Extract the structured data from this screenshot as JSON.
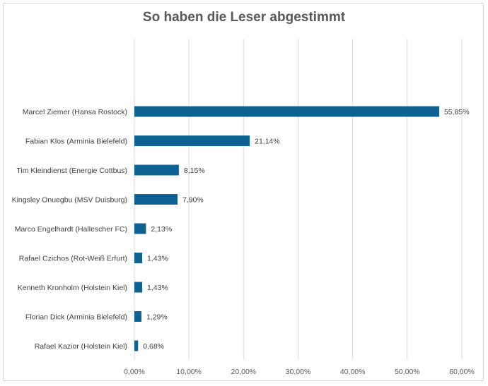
{
  "chart_data": {
    "type": "bar",
    "orientation": "horizontal",
    "title": "So haben die Leser abgestimmt",
    "xlabel": "",
    "ylabel": "",
    "categories": [
      "Marcel Ziemer (Hansa Rostock)",
      "Fabian Klos (Arminia Bielefeld)",
      "Tim Kleindienst (Energie Cottbus)",
      "Kingsley Onuegbu (MSV Duisburg)",
      "Marco Engelhardt (Hallescher FC)",
      "Rafael Czichos (Rot-Weiß Erfurt)",
      "Kenneth Kronholm (Holstein Kiel)",
      "Florian Dick (Arminia Bielefeld)",
      "Rafael Kazior (Holstein Kiel)"
    ],
    "values": [
      55.85,
      21.14,
      8.15,
      7.9,
      2.13,
      1.43,
      1.43,
      1.29,
      0.68
    ],
    "data_labels": [
      "55,85%",
      "21,14%",
      "8,15%",
      "7,90%",
      "2,13%",
      "1,43%",
      "1,43%",
      "1,29%",
      "0,68%"
    ],
    "xlim": [
      0,
      60
    ],
    "x_ticks": [
      0,
      10,
      20,
      30,
      40,
      50,
      60
    ],
    "x_tick_labels": [
      "0,00%",
      "10,00%",
      "20,00%",
      "30,00%",
      "40,00%",
      "50,00%",
      "60,00%"
    ],
    "grid": true,
    "legend": "none",
    "colors": {
      "bar": "#0e6193",
      "grid": "#d9d9d9",
      "text": "#404040"
    }
  }
}
